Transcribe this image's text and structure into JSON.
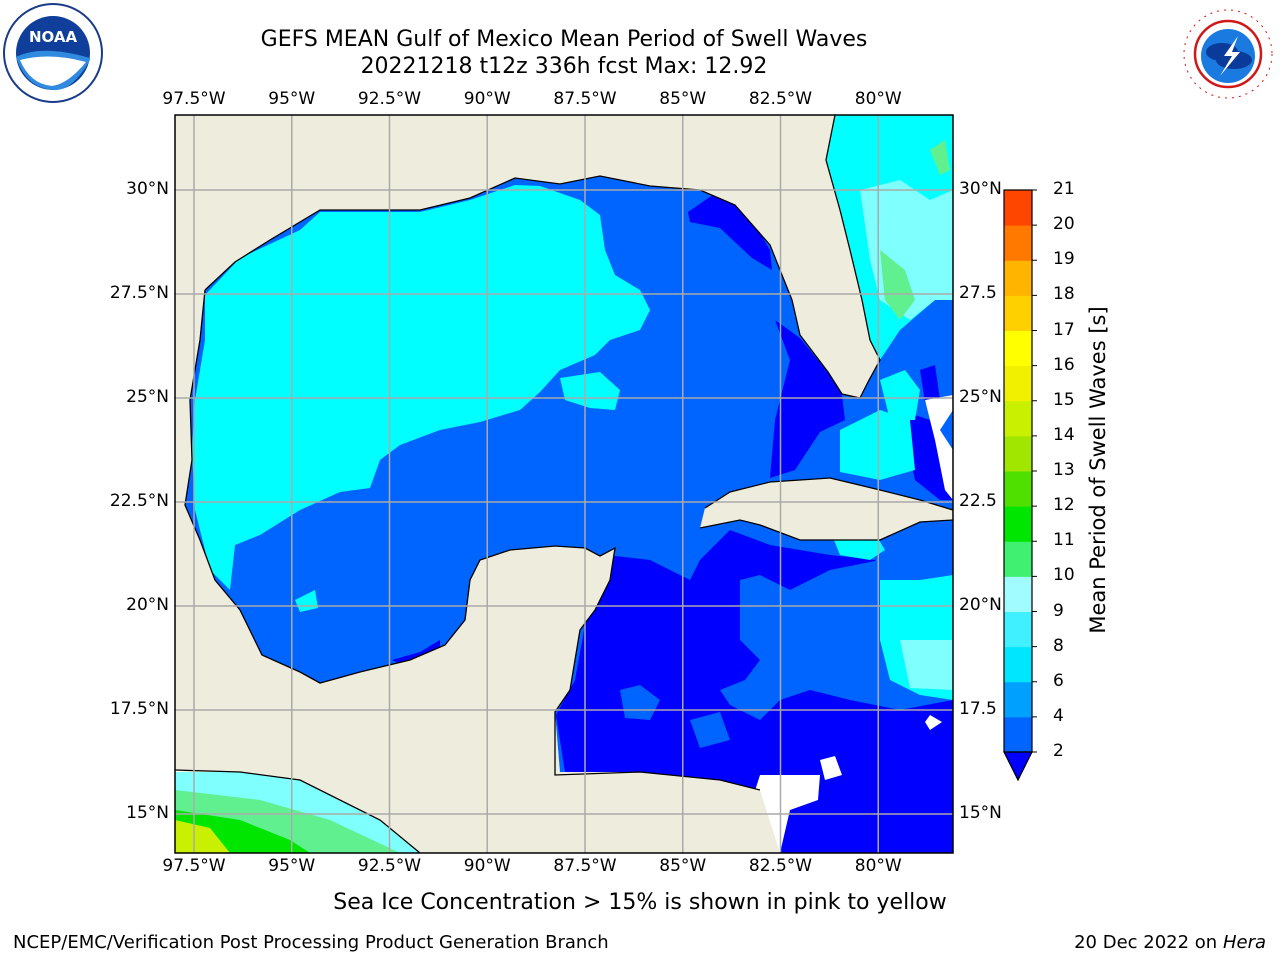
{
  "title_line1": "GEFS MEAN Gulf of Mexico Mean Period of Swell Waves",
  "title_line2": "20221218 t12z 336h fcst   Max: 12.92",
  "lon_labels": [
    "97.5°W",
    "95°W",
    "92.5°W",
    "90°W",
    "87.5°W",
    "85°W",
    "82.5°W",
    "80°W"
  ],
  "lat_labels_left": [
    "30°N",
    "27.5°N",
    "25°N",
    "22.5°N",
    "20°N",
    "17.5°N",
    "15°N"
  ],
  "lat_labels_right": [
    "30°N",
    "27.5",
    "25°N",
    "22.5",
    "20°N",
    "17.5",
    "15°N"
  ],
  "colorbar": {
    "label": "Mean Period of Swell Waves [s]",
    "ticks": [
      "2",
      "4",
      "6",
      "8",
      "9",
      "10",
      "11",
      "12",
      "13",
      "14",
      "15",
      "16",
      "17",
      "18",
      "19",
      "20",
      "21"
    ],
    "colors": [
      "#0064ff",
      "#00a0ff",
      "#00e6ff",
      "#40f0ff",
      "#a0fcff",
      "#40f070",
      "#00e600",
      "#50e000",
      "#a0e600",
      "#c8f000",
      "#f0f000",
      "#ffff00",
      "#ffd000",
      "#ffb400",
      "#ff7800",
      "#ff4600",
      "#ff1e00",
      "#ff0000"
    ],
    "under_color": "#0000ff"
  },
  "ice_note": "Sea Ice Concentration > 15% is shown in pink to yellow",
  "footer_left": "NCEP/EMC/Verification Post Processing Product Generation Branch",
  "footer_right_date": "20 Dec 2022 on",
  "footer_right_host": "Hera",
  "logos": {
    "left": {
      "text": "NOAA",
      "ring": "NATIONAL OCEANIC AND ATMOSPHERIC ADMINISTRATION · U.S. DEPARTMENT OF COMMERCE"
    },
    "right": {
      "ring": "NATIONAL WEATHER SERVICE"
    }
  },
  "map_colors": {
    "land": "#eeecdc",
    "nodata": "#ffffff",
    "dark_blue": "#0000ff",
    "mid_blue": "#0064ff",
    "cyan": "#00ffff",
    "light_cyan": "#80ffff",
    "pale_cyan": "#a0fcff",
    "green_light": "#60f090",
    "green": "#00e600",
    "yellow_green": "#c8f000",
    "grid": "#aaaaaa"
  }
}
